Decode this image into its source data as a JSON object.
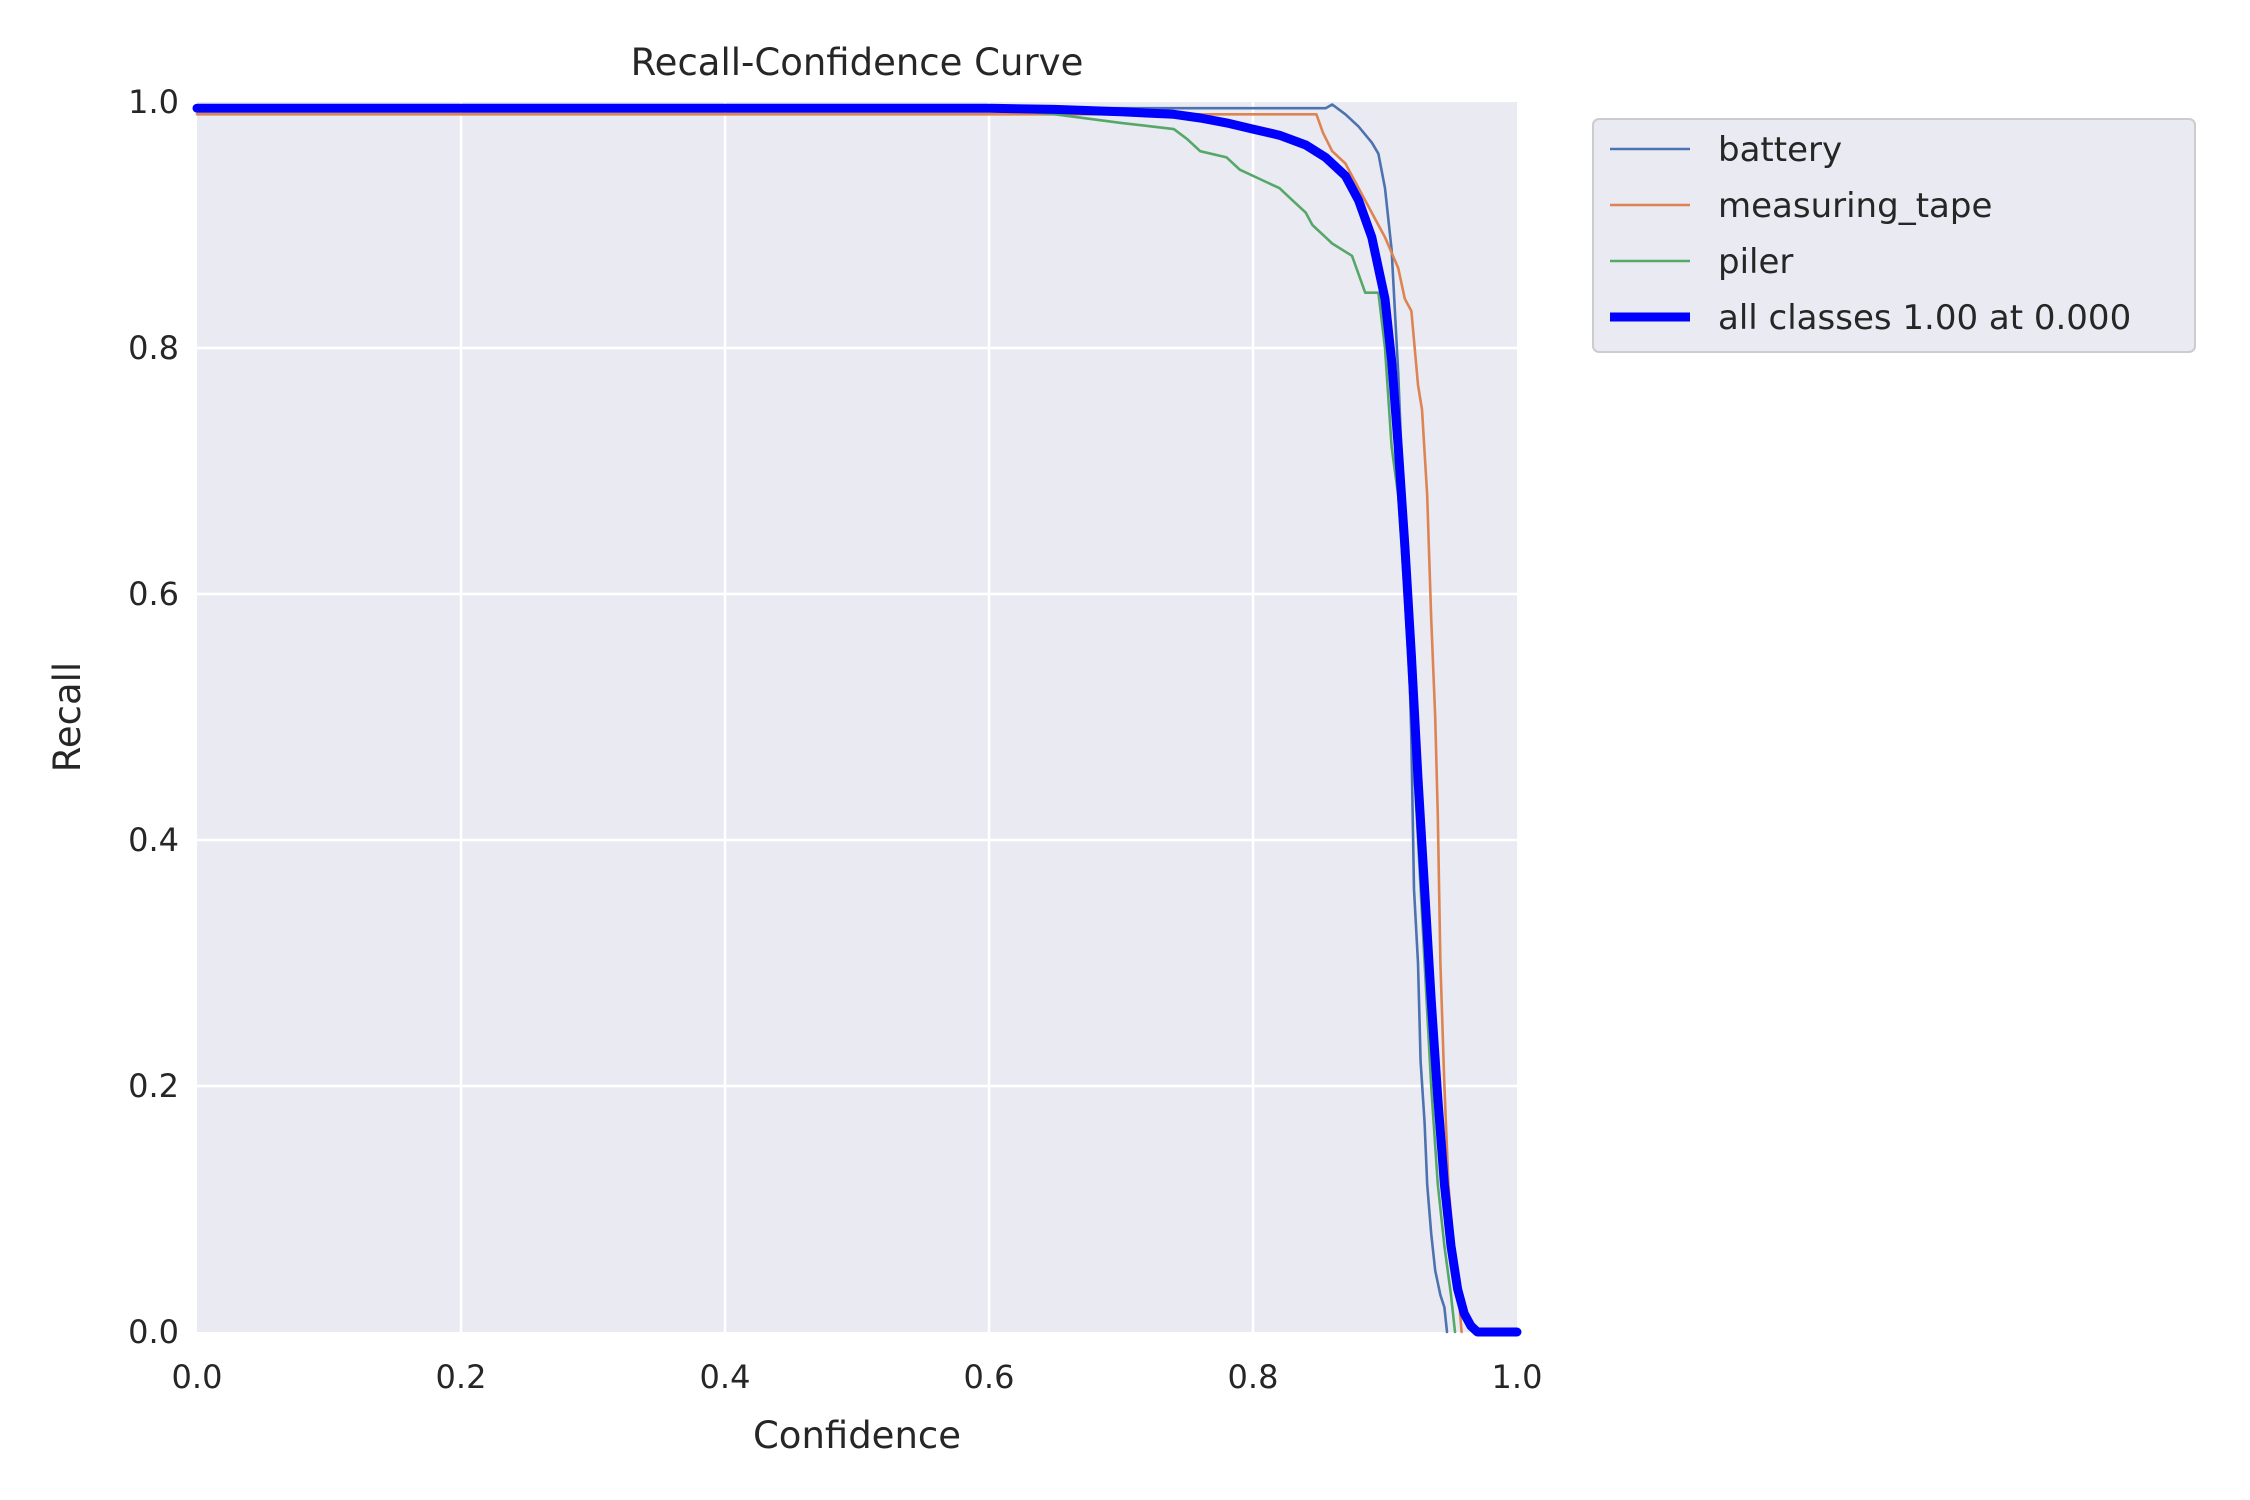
{
  "chart_data": {
    "type": "line",
    "title": "Recall-Confidence Curve",
    "xlabel": "Confidence",
    "ylabel": "Recall",
    "xlim": [
      0,
      1
    ],
    "ylim": [
      0,
      1
    ],
    "xticks": [
      "0.0",
      "0.2",
      "0.4",
      "0.6",
      "0.8",
      "1.0"
    ],
    "yticks": [
      "0.0",
      "0.2",
      "0.4",
      "0.6",
      "0.8",
      "1.0"
    ],
    "grid": true,
    "legend_position": "outside-top-right",
    "series": [
      {
        "name": "battery",
        "color": "#4c72b0",
        "points": [
          [
            0,
            0.995
          ],
          [
            0.02,
            0.995
          ],
          [
            0.2,
            0.995
          ],
          [
            0.4,
            0.995
          ],
          [
            0.6,
            0.995
          ],
          [
            0.7,
            0.995
          ],
          [
            0.8,
            0.995
          ],
          [
            0.855,
            0.995
          ],
          [
            0.86,
            0.998
          ],
          [
            0.87,
            0.99
          ],
          [
            0.88,
            0.98
          ],
          [
            0.89,
            0.967
          ],
          [
            0.895,
            0.958
          ],
          [
            0.9,
            0.93
          ],
          [
            0.905,
            0.88
          ],
          [
            0.91,
            0.78
          ],
          [
            0.913,
            0.7
          ],
          [
            0.917,
            0.6
          ],
          [
            0.92,
            0.48
          ],
          [
            0.922,
            0.36
          ],
          [
            0.925,
            0.3
          ],
          [
            0.927,
            0.22
          ],
          [
            0.93,
            0.17
          ],
          [
            0.932,
            0.12
          ],
          [
            0.935,
            0.08
          ],
          [
            0.938,
            0.05
          ],
          [
            0.942,
            0.03
          ],
          [
            0.945,
            0.02
          ],
          [
            0.947,
            0.0
          ]
        ]
      },
      {
        "name": "measuring_tape",
        "color": "#dd8452",
        "points": [
          [
            0,
            0.99
          ],
          [
            0.2,
            0.99
          ],
          [
            0.4,
            0.99
          ],
          [
            0.6,
            0.99
          ],
          [
            0.7,
            0.99
          ],
          [
            0.8,
            0.99
          ],
          [
            0.848,
            0.99
          ],
          [
            0.853,
            0.975
          ],
          [
            0.86,
            0.96
          ],
          [
            0.87,
            0.95
          ],
          [
            0.88,
            0.93
          ],
          [
            0.89,
            0.91
          ],
          [
            0.9,
            0.89
          ],
          [
            0.91,
            0.865
          ],
          [
            0.915,
            0.84
          ],
          [
            0.92,
            0.83
          ],
          [
            0.925,
            0.77
          ],
          [
            0.928,
            0.75
          ],
          [
            0.932,
            0.68
          ],
          [
            0.935,
            0.58
          ],
          [
            0.938,
            0.5
          ],
          [
            0.94,
            0.42
          ],
          [
            0.942,
            0.3
          ],
          [
            0.945,
            0.2
          ],
          [
            0.948,
            0.12
          ],
          [
            0.952,
            0.07
          ],
          [
            0.955,
            0.04
          ],
          [
            0.958,
            0.0
          ]
        ]
      },
      {
        "name": "piler",
        "color": "#55a868",
        "points": [
          [
            0,
            0.995
          ],
          [
            0.2,
            0.995
          ],
          [
            0.4,
            0.995
          ],
          [
            0.6,
            0.995
          ],
          [
            0.65,
            0.99
          ],
          [
            0.7,
            0.983
          ],
          [
            0.74,
            0.978
          ],
          [
            0.75,
            0.97
          ],
          [
            0.76,
            0.96
          ],
          [
            0.78,
            0.955
          ],
          [
            0.79,
            0.945
          ],
          [
            0.81,
            0.935
          ],
          [
            0.82,
            0.93
          ],
          [
            0.83,
            0.92
          ],
          [
            0.84,
            0.91
          ],
          [
            0.845,
            0.9
          ],
          [
            0.855,
            0.89
          ],
          [
            0.86,
            0.885
          ],
          [
            0.875,
            0.875
          ],
          [
            0.88,
            0.86
          ],
          [
            0.885,
            0.845
          ],
          [
            0.895,
            0.845
          ],
          [
            0.9,
            0.8
          ],
          [
            0.905,
            0.72
          ],
          [
            0.91,
            0.68
          ],
          [
            0.915,
            0.6
          ],
          [
            0.92,
            0.5
          ],
          [
            0.925,
            0.4
          ],
          [
            0.93,
            0.3
          ],
          [
            0.935,
            0.2
          ],
          [
            0.94,
            0.12
          ],
          [
            0.945,
            0.07
          ],
          [
            0.95,
            0.03
          ],
          [
            0.953,
            0.0
          ]
        ]
      },
      {
        "name": "all classes 1.00 at 0.000",
        "color": "#0000ff",
        "bold": true,
        "points": [
          [
            0,
            0.995
          ],
          [
            0.2,
            0.995
          ],
          [
            0.4,
            0.995
          ],
          [
            0.6,
            0.995
          ],
          [
            0.65,
            0.994
          ],
          [
            0.7,
            0.992
          ],
          [
            0.74,
            0.99
          ],
          [
            0.76,
            0.987
          ],
          [
            0.78,
            0.983
          ],
          [
            0.8,
            0.978
          ],
          [
            0.82,
            0.973
          ],
          [
            0.84,
            0.965
          ],
          [
            0.855,
            0.955
          ],
          [
            0.87,
            0.94
          ],
          [
            0.88,
            0.92
          ],
          [
            0.89,
            0.89
          ],
          [
            0.9,
            0.84
          ],
          [
            0.905,
            0.79
          ],
          [
            0.91,
            0.72
          ],
          [
            0.915,
            0.64
          ],
          [
            0.92,
            0.55
          ],
          [
            0.925,
            0.45
          ],
          [
            0.93,
            0.36
          ],
          [
            0.935,
            0.27
          ],
          [
            0.94,
            0.19
          ],
          [
            0.945,
            0.12
          ],
          [
            0.95,
            0.07
          ],
          [
            0.955,
            0.035
          ],
          [
            0.96,
            0.015
          ],
          [
            0.965,
            0.005
          ],
          [
            0.97,
            0.0
          ],
          [
            1.0,
            0.0
          ]
        ]
      }
    ]
  }
}
